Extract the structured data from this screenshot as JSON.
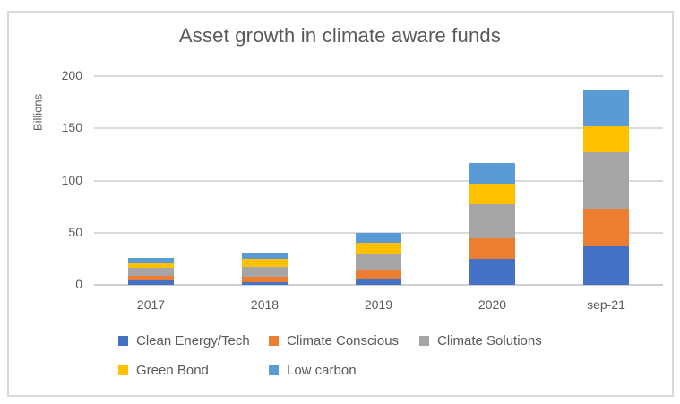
{
  "chart_data": {
    "type": "bar",
    "stacked": true,
    "title": "Asset growth in climate aware funds",
    "ylabel": "Billions",
    "xlabel": "",
    "categories": [
      "2017",
      "2018",
      "2019",
      "2020",
      "sep-21"
    ],
    "series": [
      {
        "name": "Clean Energy/Tech",
        "color": "#4472C4",
        "values": [
          4,
          3,
          5,
          25,
          37
        ]
      },
      {
        "name": "Climate Conscious",
        "color": "#ED7D31",
        "values": [
          5,
          5,
          10,
          20,
          36
        ]
      },
      {
        "name": "Climate Solutions",
        "color": "#A5A5A5",
        "values": [
          7,
          9,
          15,
          32,
          54
        ]
      },
      {
        "name": "Green Bond",
        "color": "#FFC000",
        "values": [
          5,
          8,
          10,
          20,
          25
        ]
      },
      {
        "name": "Low carbon",
        "color": "#5B9BD5",
        "values": [
          5,
          6,
          10,
          20,
          35
        ]
      }
    ],
    "totals": [
      26,
      31,
      50,
      117,
      187
    ],
    "yticks": [
      0,
      50,
      100,
      150,
      200
    ],
    "ylim": [
      0,
      200
    ],
    "grid": true,
    "legend_position": "bottom"
  },
  "style": {
    "text_color": "#595959",
    "gridline_color": "#d9d9d9",
    "border_color": "#d9d9d9",
    "background": "#ffffff"
  }
}
